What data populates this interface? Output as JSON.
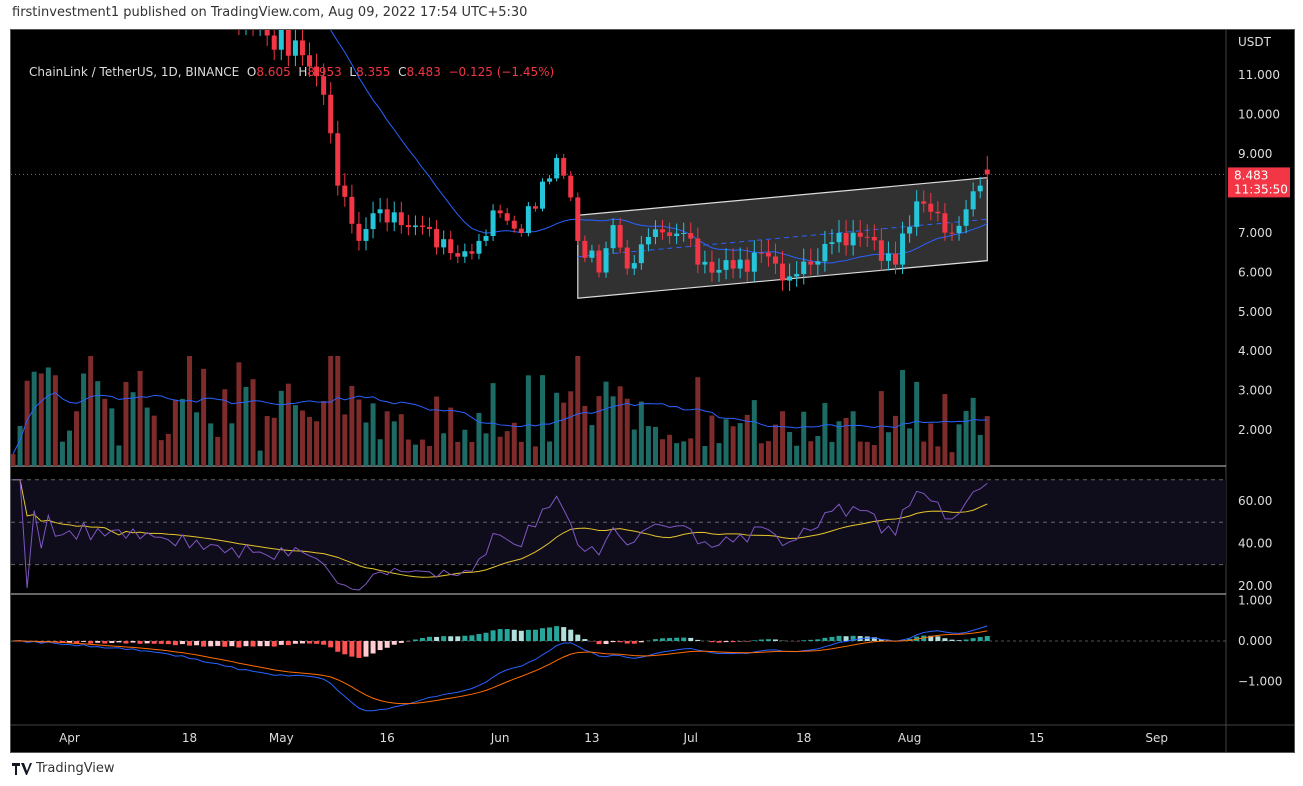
{
  "header": {
    "published": "firstinvestment1 published on TradingView.com, Aug 09, 2022 17:54 UTC+5:30"
  },
  "legend": {
    "symbol": "ChainLink / TetherUS, 1D, BINANCE",
    "o_label": "O",
    "o": "8.605",
    "h_label": "H",
    "h": "8.953",
    "l_label": "L",
    "l": "8.355",
    "c_label": "C",
    "c": "8.483",
    "change": "−0.125 (−1.45%)"
  },
  "price_scale": {
    "currency": "USDT",
    "last_price": "8.483",
    "countdown": "11:35:50"
  },
  "footer": {
    "brand": "TradingView"
  },
  "colors": {
    "up": "#26c6da",
    "down": "#f23645",
    "vol_up": "#1e6b66",
    "vol_down": "#7d2b2b",
    "ma": "#2962ff",
    "rsi": "#7e57c2",
    "rsi_ma": "#e6c52b",
    "macd": "#2962ff",
    "signal": "#ff6d00"
  },
  "chart_data": {
    "type": "candlestick",
    "title": "ChainLink / TetherUS, 1D, BINANCE",
    "price_ticks": [
      "11.000",
      "10.000",
      "9.000",
      "7.000",
      "6.000",
      "5.000",
      "4.000",
      "3.000",
      "2.000"
    ],
    "price_tick_values": [
      11,
      10,
      9,
      7,
      6,
      5,
      4,
      3,
      2
    ],
    "rsi_ticks": [
      "60.00",
      "40.00",
      "20.00"
    ],
    "rsi_tick_values": [
      60,
      40,
      20
    ],
    "macd_ticks": [
      "1.000",
      "0.000",
      "−1.000"
    ],
    "macd_tick_values": [
      1,
      0,
      -1
    ],
    "x_ticks": [
      {
        "label": "Apr",
        "i": 8
      },
      {
        "label": "18",
        "i": 25
      },
      {
        "label": "May",
        "i": 38
      },
      {
        "label": "16",
        "i": 53
      },
      {
        "label": "Jun",
        "i": 69
      },
      {
        "label": "13",
        "i": 82
      },
      {
        "label": "Jul",
        "i": 96
      },
      {
        "label": "18",
        "i": 112
      },
      {
        "label": "Aug",
        "i": 127
      },
      {
        "label": "15",
        "i": 145
      },
      {
        "label": "Sep",
        "i": 162
      }
    ],
    "close_keypoints": [
      [
        0,
        16
      ],
      [
        19,
        15
      ],
      [
        36,
        12
      ],
      [
        41,
        11.5
      ],
      [
        44,
        10.5
      ],
      [
        46,
        8.2
      ],
      [
        49,
        6.8
      ],
      [
        51,
        7.5
      ],
      [
        55,
        7.2
      ],
      [
        59,
        7.1
      ],
      [
        63,
        6.4
      ],
      [
        66,
        6.8
      ],
      [
        69,
        7.5
      ],
      [
        72,
        7.0
      ],
      [
        75,
        8.3
      ],
      [
        77,
        8.9
      ],
      [
        79,
        7.9
      ],
      [
        80,
        6.8
      ],
      [
        83,
        6.0
      ],
      [
        85,
        7.2
      ],
      [
        87,
        6.1
      ],
      [
        90,
        6.9
      ],
      [
        95,
        7.0
      ],
      [
        97,
        6.2
      ],
      [
        102,
        6.1
      ],
      [
        106,
        6.5
      ],
      [
        110,
        5.9
      ],
      [
        113,
        6.2
      ],
      [
        117,
        7.0
      ],
      [
        121,
        6.9
      ],
      [
        125,
        6.2
      ],
      [
        128,
        7.8
      ],
      [
        131,
        7.5
      ],
      [
        133,
        7.0
      ],
      [
        135,
        7.6
      ],
      [
        137,
        8.2
      ],
      [
        138,
        8.483
      ]
    ],
    "last_candle": {
      "open": 8.605,
      "high": 8.953,
      "low": 8.355,
      "close": 8.483
    },
    "channel": {
      "upper": [
        [
          80,
          7.45
        ],
        [
          138,
          8.4
        ]
      ],
      "lower": [
        [
          80,
          5.35
        ],
        [
          138,
          6.3
        ]
      ]
    },
    "indicators": [
      "Volume with MA",
      "RSI 14 with MA",
      "MACD 12 26 9"
    ]
  }
}
